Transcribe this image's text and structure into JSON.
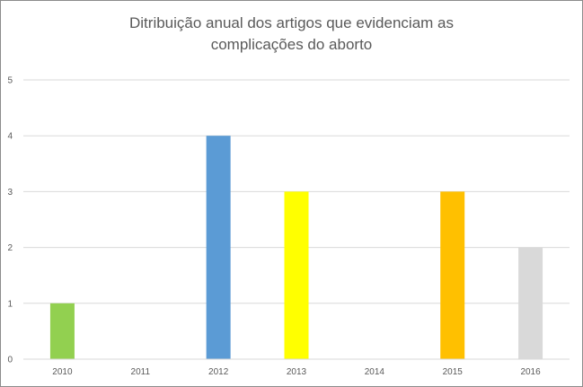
{
  "chart_data": {
    "type": "bar",
    "title_lines": [
      "Ditribuição anual dos artigos que evidenciam as",
      "complicações do aborto"
    ],
    "categories": [
      "2010",
      "2011",
      "2012",
      "2013",
      "2014",
      "2015",
      "2016"
    ],
    "values": [
      1,
      0,
      4,
      3,
      0,
      3,
      2
    ],
    "colors": [
      "#92d050",
      "#5b9bd5",
      "#5b9bd5",
      "#ffff00",
      "#ffc000",
      "#ffc000",
      "#d9d9d9"
    ],
    "ylim": [
      0,
      5
    ],
    "yticks": [
      "0",
      "1",
      "2",
      "3",
      "4",
      "5"
    ],
    "grid": true,
    "legend": "none"
  }
}
